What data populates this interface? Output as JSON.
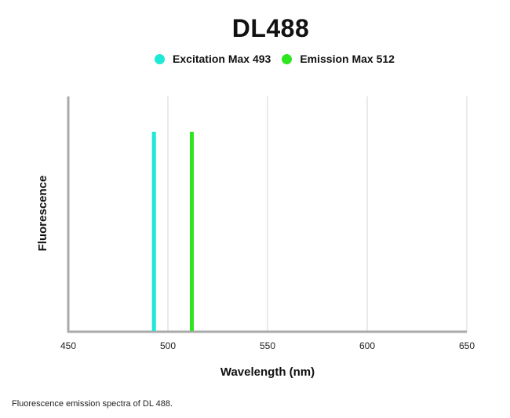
{
  "caption": "Fluorescence emission spectra of DL 488.",
  "chart_data": {
    "type": "line",
    "title": "DL488",
    "xlabel": "Wavelength (nm)",
    "ylabel": "Fluorescence",
    "xlim": [
      450,
      650
    ],
    "xticks": [
      450,
      500,
      550,
      600,
      650
    ],
    "grid": true,
    "legend_position": "top-center",
    "series": [
      {
        "name": "Excitation Max 493",
        "x": 493,
        "color": "#1de9d6"
      },
      {
        "name": "Emission Max 512",
        "x": 512,
        "color": "#2de61f"
      }
    ]
  }
}
